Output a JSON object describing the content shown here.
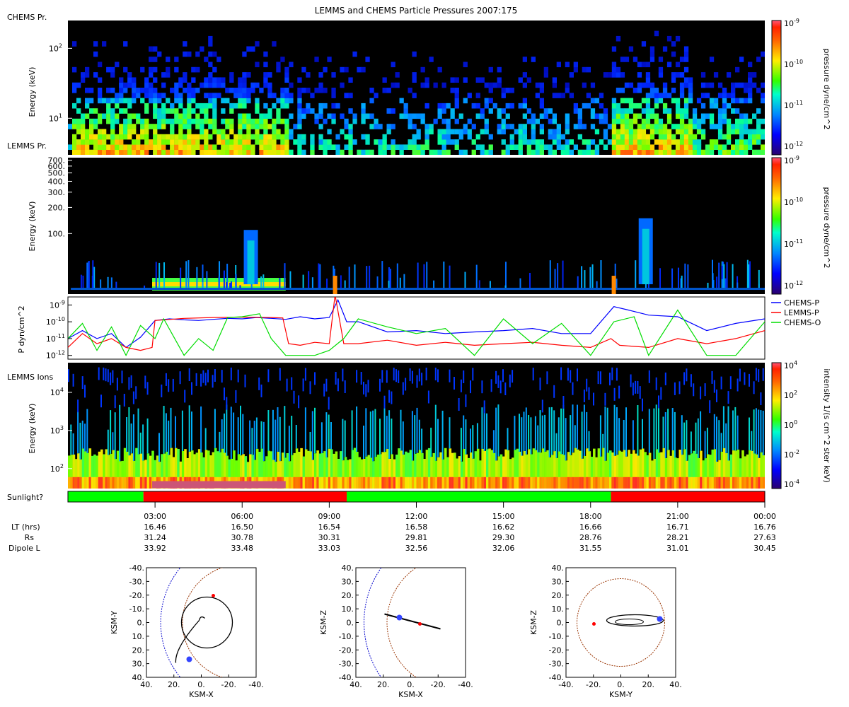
{
  "title": "LEMMS and CHEMS Particle Pressures  2007:175",
  "chart_data": [
    {
      "id": "chems_spectrogram",
      "type": "heatmap",
      "panel_label": "CHEMS Pr.",
      "ylabel": "Energy (keV)",
      "y_scale": "log",
      "ylim": [
        3,
        250
      ],
      "y_ticks": [
        {
          "value": 10,
          "label": "10",
          "sup": "1"
        },
        {
          "value": 100,
          "label": "10",
          "sup": "2"
        }
      ],
      "colorbar": {
        "label": "pressure dyne/cm^2",
        "scale": "log",
        "ticks": [
          {
            "label": "10",
            "sup": "-9"
          },
          {
            "label": "10",
            "sup": "-10"
          },
          {
            "label": "10",
            "sup": "-11"
          },
          {
            "label": "10",
            "sup": "-12"
          }
        ]
      },
      "activity": [
        {
          "x_start": 0.2,
          "x_end": 7.6,
          "level": "high",
          "max_energy_keV": 60
        },
        {
          "x_start": 18.7,
          "x_end": 21.5,
          "level": "high",
          "max_energy_keV": 80
        },
        {
          "x_start": 7.6,
          "x_end": 18.7,
          "level": "low",
          "max_energy_keV": 30
        },
        {
          "x_start": 21.5,
          "x_end": 24.0,
          "level": "medium",
          "max_energy_keV": 40
        }
      ]
    },
    {
      "id": "lemms_spectrogram",
      "type": "heatmap",
      "panel_label": "LEMMS Pr.",
      "ylabel": "Energy (keV)",
      "y_scale": "log",
      "ylim": [
        20,
        750
      ],
      "y_ticks": [
        {
          "value": 100,
          "label": "100."
        },
        {
          "value": 200,
          "label": "200."
        },
        {
          "value": 300,
          "label": "300."
        },
        {
          "value": 400,
          "label": "400."
        },
        {
          "value": 500,
          "label": "500."
        },
        {
          "value": 600,
          "label": "600."
        },
        {
          "value": 700,
          "label": "700."
        }
      ],
      "colorbar": {
        "label": "pressure dyne/cm^2",
        "scale": "log",
        "ticks": [
          {
            "label": "10",
            "sup": "-9"
          },
          {
            "label": "10",
            "sup": "-10"
          },
          {
            "label": "10",
            "sup": "-11"
          },
          {
            "label": "10",
            "sup": "-12"
          }
        ]
      },
      "band": {
        "x_start": 2.9,
        "x_end": 7.5,
        "energy_keV": 26
      },
      "features": [
        {
          "x": 9.2,
          "kind": "spike"
        },
        {
          "x": 18.8,
          "kind": "spike"
        },
        {
          "x": 6.3,
          "kind": "plume",
          "max_energy_keV": 110
        },
        {
          "x": 19.9,
          "kind": "plume",
          "max_energy_keV": 150
        }
      ]
    },
    {
      "id": "pressure_lines",
      "type": "line",
      "ylabel": "P dyn/cm^2",
      "y_scale": "log",
      "ylim": [
        6e-13,
        3e-09
      ],
      "y_ticks": [
        {
          "value": 1e-09,
          "label": "10",
          "sup": "-9"
        },
        {
          "value": 1e-10,
          "label": "10",
          "sup": "-10"
        },
        {
          "value": 1e-11,
          "label": "10",
          "sup": "-11"
        },
        {
          "value": 1e-12,
          "label": "10",
          "sup": "-12"
        }
      ],
      "legend_position": "right",
      "series": [
        {
          "name": "CHEMS-P",
          "color": "#0000ff",
          "x": [
            0,
            0.5,
            1,
            1.5,
            2,
            2.5,
            3,
            3.5,
            4,
            4.5,
            5,
            5.5,
            6,
            6.5,
            7,
            7.5,
            8,
            8.5,
            9,
            9.3,
            9.6,
            10,
            11,
            12,
            13,
            14,
            15,
            16,
            17,
            18,
            18.8,
            19.3,
            20,
            21,
            22,
            23,
            24
          ],
          "y": [
            1e-11,
            3e-11,
            1e-11,
            2e-11,
            3e-12,
            1.2e-11,
            1.2e-10,
            1.5e-10,
            1.3e-10,
            1.2e-10,
            1.4e-10,
            1.6e-10,
            1.5e-10,
            1.8e-10,
            1.6e-10,
            1.4e-10,
            2e-10,
            1.5e-10,
            1.8e-10,
            2e-09,
            1e-10,
            1e-10,
            2.5e-11,
            3e-11,
            2e-11,
            2.5e-11,
            3e-11,
            4e-11,
            2e-11,
            2e-11,
            8e-10,
            5e-10,
            2.5e-10,
            2e-10,
            3e-11,
            8e-11,
            1.5e-10
          ]
        },
        {
          "name": "LEMMS-P",
          "color": "#ff0000",
          "x": [
            0,
            0.5,
            1,
            1.5,
            2,
            2.5,
            2.9,
            3,
            4,
            5,
            6,
            7,
            7.4,
            7.6,
            8,
            8.5,
            9,
            9.2,
            9.5,
            10,
            11,
            12,
            13,
            14,
            15,
            16,
            17,
            18,
            18.7,
            19,
            20,
            21,
            22,
            23,
            24
          ],
          "y": [
            3e-12,
            2e-11,
            5e-12,
            1e-11,
            3e-12,
            2e-12,
            3e-12,
            1.2e-10,
            1.6e-10,
            1.8e-10,
            1.9e-10,
            1.8e-10,
            1.7e-10,
            5e-12,
            4e-12,
            6e-12,
            5e-12,
            4e-09,
            5e-12,
            5e-12,
            8e-12,
            4e-12,
            6e-12,
            4e-12,
            5e-12,
            6e-12,
            4e-12,
            3e-12,
            1e-11,
            4e-12,
            3e-12,
            1e-11,
            5e-12,
            1e-11,
            3e-11
          ]
        },
        {
          "name": "CHEMS-O",
          "color": "#00dd00",
          "x": [
            0,
            0.5,
            1,
            1.5,
            2,
            2.5,
            3,
            3.3,
            4,
            4.5,
            5,
            5.5,
            6,
            6.6,
            7,
            7.5,
            8,
            8.5,
            9,
            9.5,
            10,
            11,
            12,
            13,
            14,
            15,
            16,
            17,
            18,
            18.8,
            19.5,
            20,
            21,
            22,
            23,
            24
          ],
          "y": [
            1e-11,
            8e-11,
            2e-12,
            5e-11,
            1e-12,
            6e-11,
            1e-11,
            1.5e-10,
            1e-12,
            1e-11,
            2e-12,
            1.8e-10,
            2e-10,
            3e-10,
            1e-11,
            1e-12,
            1e-12,
            1e-12,
            2e-12,
            1e-11,
            1.5e-10,
            5e-11,
            2e-11,
            4e-11,
            1e-12,
            1.5e-10,
            5e-12,
            8e-11,
            1e-12,
            1e-10,
            2e-10,
            1e-12,
            5e-10,
            1e-12,
            1e-12,
            1e-10
          ]
        }
      ]
    },
    {
      "id": "lemms_ions",
      "type": "heatmap",
      "panel_label": "LEMMS Ions",
      "ylabel": "Energy (keV)",
      "y_scale": "log",
      "ylim": [
        30,
        60000
      ],
      "y_ticks": [
        {
          "value": 100,
          "label": "10",
          "sup": "2"
        },
        {
          "value": 1000,
          "label": "10",
          "sup": "3"
        },
        {
          "value": 10000,
          "label": "10",
          "sup": "4"
        }
      ],
      "colorbar": {
        "label": "intensity 1/(s cm^2 ster keV)",
        "scale": "log",
        "ticks": [
          {
            "label": "10",
            "sup": "4"
          },
          {
            "label": "10",
            "sup": "2"
          },
          {
            "label": "10",
            "sup": "0"
          },
          {
            "label": "10",
            "sup": "-2"
          },
          {
            "label": "10",
            "sup": "-4"
          }
        ]
      },
      "band": {
        "x_start": 2.9,
        "x_end": 7.5,
        "energy_keV": 38
      }
    },
    {
      "id": "sunlight",
      "type": "bar",
      "label": "Sunlight?",
      "segments": [
        {
          "x_start": 0,
          "x_end": 2.6,
          "state": "sunlight",
          "color": "#00ff00"
        },
        {
          "x_start": 2.6,
          "x_end": 9.6,
          "state": "shadow",
          "color": "#ff0000"
        },
        {
          "x_start": 9.6,
          "x_end": 18.7,
          "state": "sunlight",
          "color": "#00ff00"
        },
        {
          "x_start": 18.7,
          "x_end": 24,
          "state": "shadow",
          "color": "#ff0000"
        }
      ]
    },
    {
      "id": "orbit_xy",
      "type": "scatter",
      "xlabel": "KSM-X",
      "ylabel": "KSM-Y",
      "x_ticks": [
        "40.",
        "20.",
        "0.",
        "-20.",
        "-40."
      ],
      "y_ticks": [
        "-40.",
        "-30.",
        "-20.",
        "-10.",
        "0.",
        "10.",
        "20.",
        "30.",
        "40."
      ],
      "xlim": [
        40,
        -40
      ],
      "ylim": [
        -40,
        40
      ]
    },
    {
      "id": "orbit_xz",
      "type": "scatter",
      "xlabel": "KSM-X",
      "ylabel": "KSM-Z",
      "x_ticks": [
        "40.",
        "20.",
        "0.",
        "-20.",
        "-40."
      ],
      "y_ticks": [
        "40.",
        "30.",
        "20.",
        "10.",
        "0.",
        "-10.",
        "-20.",
        "-30.",
        "-40."
      ],
      "xlim": [
        40,
        -40
      ],
      "ylim": [
        -40,
        40
      ]
    },
    {
      "id": "orbit_yz",
      "type": "scatter",
      "xlabel": "KSM-Y",
      "ylabel": "KSM-Z",
      "x_ticks": [
        "-40.",
        "-20.",
        "0.",
        "20.",
        "40."
      ],
      "y_ticks": [
        "40.",
        "30.",
        "20.",
        "10.",
        "0.",
        "-10.",
        "-20.",
        "-30.",
        "-40."
      ],
      "xlim": [
        -40,
        40
      ],
      "ylim": [
        -40,
        40
      ]
    }
  ],
  "time_axis": {
    "ticks": [
      {
        "hour": 3,
        "label": "03:00",
        "lt": "16.46",
        "rs": "31.24",
        "l": "33.92"
      },
      {
        "hour": 6,
        "label": "06:00",
        "lt": "16.50",
        "rs": "30.78",
        "l": "33.48"
      },
      {
        "hour": 9,
        "label": "09:00",
        "lt": "16.54",
        "rs": "30.31",
        "l": "33.03"
      },
      {
        "hour": 12,
        "label": "12:00",
        "lt": "16.58",
        "rs": "29.81",
        "l": "32.56"
      },
      {
        "hour": 15,
        "label": "15:00",
        "lt": "16.62",
        "rs": "29.30",
        "l": "32.06"
      },
      {
        "hour": 18,
        "label": "18:00",
        "lt": "16.66",
        "rs": "28.76",
        "l": "31.55"
      },
      {
        "hour": 21,
        "label": "21:00",
        "lt": "16.71",
        "rs": "28.21",
        "l": "31.01"
      },
      {
        "hour": 24,
        "label": "00:00",
        "lt": "16.76",
        "rs": "27.63",
        "l": "30.45"
      }
    ],
    "row_labels": {
      "lt": "LT (hrs)",
      "rs": "Rs",
      "l": "Dipole L"
    }
  },
  "colors": {
    "chems_p": "#0000ff",
    "lemms_p": "#ff0000",
    "chems_o": "#00dd00"
  }
}
